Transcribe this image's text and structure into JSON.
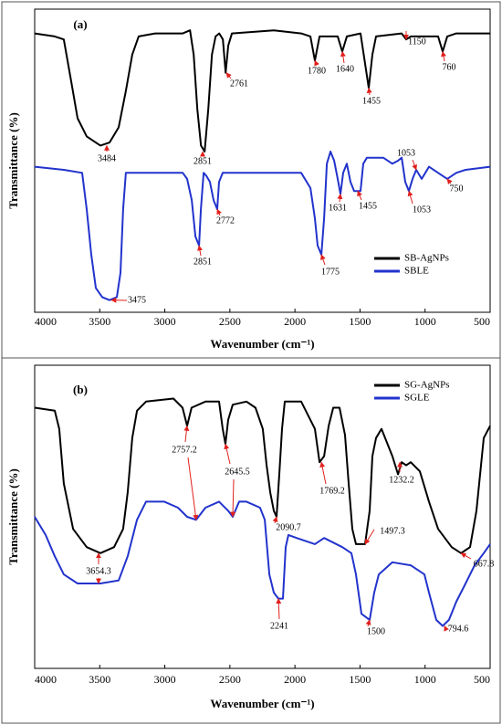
{
  "chart_data": [
    {
      "type": "line",
      "label": "(a)",
      "xlabel": "Wavenumber (cm⁻¹)",
      "ylabel": "Transmittance (%)",
      "xlim": [
        4000,
        500
      ],
      "ylim": [
        0,
        100
      ],
      "xticks": [
        4000,
        3500,
        3000,
        2500,
        2000,
        1500,
        1000,
        500
      ],
      "legend": "lower right",
      "series": [
        {
          "name": "SB-AgNPs",
          "color": "#000000",
          "x": [
            4000,
            3846,
            3776,
            3719,
            3670,
            3600,
            3495,
            3425,
            3355,
            3299,
            3250,
            3201,
            3074,
            2862,
            2806,
            2778,
            2750,
            2722,
            2694,
            2666,
            2638,
            2610,
            2582,
            2554,
            2533,
            2512,
            2484,
            2162,
            1952,
            1881,
            1847,
            1811,
            1671,
            1636,
            1601,
            1496,
            1461,
            1433,
            1405,
            1377,
            1180,
            1145,
            1110,
            900,
            865,
            830,
            760,
            500
          ],
          "values": [
            92,
            91,
            90,
            76,
            64,
            58,
            55,
            56,
            61,
            73,
            85,
            91,
            92,
            92,
            93,
            85,
            67,
            55,
            53,
            67,
            85,
            91,
            92,
            90,
            79,
            88,
            92,
            93,
            92,
            91,
            83,
            91,
            91,
            86,
            91,
            92,
            82,
            74,
            85,
            91,
            92,
            90,
            91,
            91,
            86,
            91,
            92,
            92
          ]
        },
        {
          "name": "SBLE",
          "color": "#2233cc",
          "x": [
            4000,
            3776,
            3635,
            3600,
            3565,
            3530,
            3481,
            3425,
            3369,
            3341,
            3320,
            3299,
            3250,
            2862,
            2829,
            2793,
            2765,
            2737,
            2723,
            2702,
            2681,
            2653,
            2625,
            2597,
            2583,
            2555,
            2162,
            1952,
            1881,
            1847,
            1826,
            1797,
            1776,
            1755,
            1727,
            1699,
            1671,
            1650,
            1629,
            1601,
            1573,
            1545,
            1496,
            1475,
            1447,
            1321,
            1251,
            1208,
            1180,
            1152,
            1124,
            1096,
            1068,
            1026,
            998,
            970,
            900,
            830,
            760,
            689,
            500
          ],
          "values": [
            48,
            47,
            46,
            34,
            19,
            8,
            5,
            4,
            5,
            13,
            34,
            46,
            46,
            46,
            44,
            37,
            25,
            22,
            34,
            46,
            45,
            43,
            37,
            34,
            43,
            46,
            46,
            46,
            41,
            31,
            22,
            19,
            31,
            49,
            53,
            50,
            44,
            39,
            46,
            49,
            43,
            40,
            40,
            49,
            51,
            51,
            49,
            50,
            51,
            43,
            40,
            44,
            47,
            44,
            46,
            48,
            46,
            44,
            46,
            47,
            48
          ]
        }
      ],
      "annotations": [
        {
          "text": "3484",
          "points": [
            [
              3446,
              55
            ]
          ]
        },
        {
          "text": "2851",
          "points": [
            [
              2709,
              53
            ]
          ]
        },
        {
          "text": "2761",
          "points": [
            [
              2527,
              79
            ]
          ]
        },
        {
          "text": "1780",
          "points": [
            [
              1847,
              83
            ]
          ]
        },
        {
          "text": "1640",
          "points": [
            [
              1636,
              86
            ]
          ]
        },
        {
          "text": "1455",
          "points": [
            [
              1433,
              74
            ]
          ]
        },
        {
          "text": "1150",
          "points": [
            [
              1145,
              90
            ]
          ]
        },
        {
          "text": "760",
          "points": [
            [
              865,
              86
            ]
          ]
        },
        {
          "text": "3475",
          "points": [
            [
              3411,
              4
            ]
          ]
        },
        {
          "text": "2851",
          "points": [
            [
              2737,
              22
            ]
          ]
        },
        {
          "text": "2772",
          "points": [
            [
              2597,
              34
            ]
          ]
        },
        {
          "text": "1775",
          "points": [
            [
              1797,
              19
            ]
          ]
        },
        {
          "text": "1631",
          "points": [
            [
              1650,
              39
            ]
          ]
        },
        {
          "text": "1455",
          "points": [
            [
              1517,
              40
            ]
          ]
        },
        {
          "text": "1053",
          "points": [
            [
              1068,
              47
            ]
          ]
        },
        {
          "text": "1053",
          "points": [
            [
              1124,
              40
            ]
          ]
        },
        {
          "text": "750",
          "points": [
            [
              830,
              44
            ]
          ]
        }
      ]
    },
    {
      "type": "line",
      "label": "(b)",
      "xlabel": "Wavenumber (cm⁻¹)",
      "ylabel": "Transmittance (%)",
      "xlim": [
        4000,
        500
      ],
      "ylim": [
        0,
        100
      ],
      "xticks": [
        4000,
        3500,
        3000,
        2500,
        2000,
        1500,
        1000,
        500
      ],
      "legend": "upper right",
      "series": [
        {
          "name": "SG-AgNPs",
          "color": "#000000",
          "x": [
            4000,
            3846,
            3811,
            3776,
            3705,
            3600,
            3495,
            3390,
            3320,
            3285,
            3250,
            3214,
            3144,
            2934,
            2864,
            2829,
            2794,
            2688,
            2583,
            2555,
            2534,
            2513,
            2478,
            2373,
            2303,
            2247,
            2218,
            2190,
            2162,
            2141,
            2120,
            2099,
            2078,
            1952,
            1847,
            1811,
            1776,
            1741,
            1706,
            1657,
            1615,
            1587,
            1559,
            1531,
            1461,
            1426,
            1405,
            1377,
            1335,
            1251,
            1208,
            1180,
            1145,
            1110,
            1040,
            970,
            900,
            795,
            724,
            654,
            605,
            549,
            500
          ],
          "values": [
            86,
            85,
            79,
            61,
            46,
            40,
            38,
            40,
            46,
            58,
            76,
            85,
            88,
            89,
            86,
            80,
            86,
            88,
            88,
            79,
            74,
            82,
            87,
            88,
            86,
            79,
            67,
            58,
            52,
            50,
            64,
            79,
            88,
            88,
            79,
            68,
            70,
            80,
            86,
            86,
            77,
            61,
            46,
            41,
            41,
            52,
            70,
            76,
            79,
            70,
            64,
            68,
            67,
            68,
            65,
            55,
            46,
            40,
            38,
            40,
            52,
            76,
            80
          ]
        },
        {
          "name": "SGLE",
          "color": "#2233cc",
          "x": [
            4000,
            3916,
            3846,
            3776,
            3670,
            3495,
            3355,
            3285,
            3214,
            3144,
            3004,
            2899,
            2829,
            2759,
            2688,
            2583,
            2513,
            2478,
            2429,
            2373,
            2268,
            2232,
            2197,
            2162,
            2127,
            2092,
            2071,
            2050,
            1987,
            1847,
            1776,
            1636,
            1566,
            1531,
            1489,
            1426,
            1391,
            1356,
            1251,
            1110,
            1005,
            970,
            914,
            865,
            816,
            760,
            689,
            619,
            549,
            500
          ],
          "values": [
            50,
            44,
            37,
            31,
            28,
            28,
            29,
            37,
            49,
            55,
            55,
            53,
            50,
            49,
            53,
            55,
            52,
            50,
            55,
            55,
            53,
            49,
            31,
            25,
            23,
            23,
            40,
            44,
            43,
            41,
            43,
            40,
            38,
            31,
            18,
            16,
            25,
            31,
            35,
            34,
            31,
            25,
            16,
            14,
            16,
            22,
            28,
            34,
            38,
            41
          ]
        }
      ],
      "annotations": [
        {
          "text": "2757.2",
          "points": [
            [
              2829,
              80
            ],
            [
              2759,
              49
            ]
          ]
        },
        {
          "text": "2645.5",
          "points": [
            [
              2534,
              74
            ],
            [
              2478,
              50
            ]
          ]
        },
        {
          "text": "2090.7",
          "points": [
            [
              2141,
              50
            ]
          ]
        },
        {
          "text": "1769.2",
          "points": [
            [
              1797,
              68
            ]
          ]
        },
        {
          "text": "1497.3",
          "points": [
            [
              1461,
              41
            ]
          ]
        },
        {
          "text": "1232.2",
          "points": [
            [
              1194,
              68
            ]
          ]
        },
        {
          "text": "667.8",
          "points": [
            [
              724,
              38
            ]
          ]
        },
        {
          "text": "3654.3",
          "points": [
            [
              3509,
              38
            ],
            [
              3509,
              28
            ]
          ]
        },
        {
          "text": "2241",
          "points": [
            [
              2127,
              23
            ]
          ]
        },
        {
          "text": "1500",
          "points": [
            [
              1426,
              16
            ]
          ]
        },
        {
          "text": "794.6",
          "points": [
            [
              851,
              14
            ]
          ]
        }
      ]
    }
  ]
}
